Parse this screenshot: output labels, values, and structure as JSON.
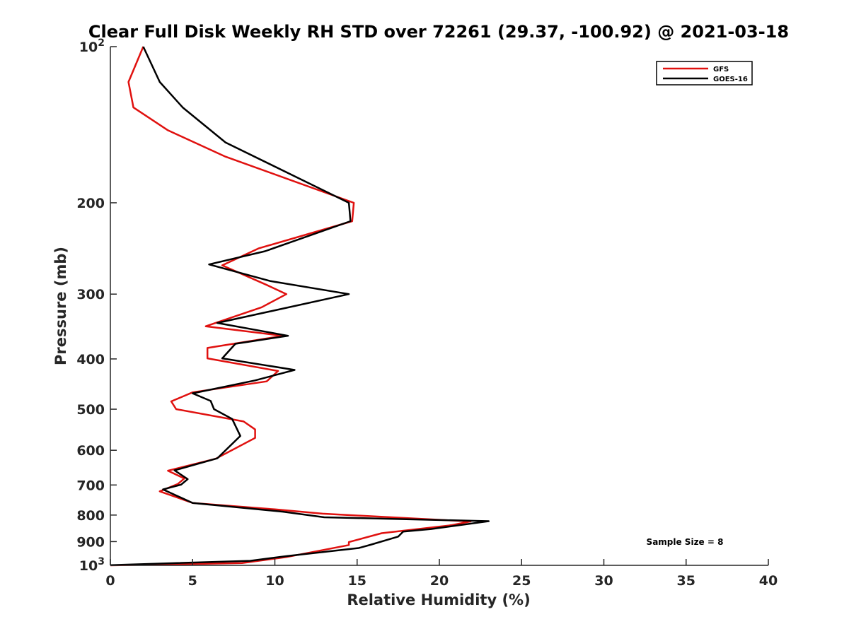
{
  "chart_data": {
    "type": "line",
    "title": "Clear Full Disk Weekly RH STD over 72261 (29.37, -100.92) @ 2021-03-18",
    "xlabel": "Relative Humidity (%)",
    "ylabel": "Pressure (mb)",
    "xlim": [
      0,
      40
    ],
    "ylim": [
      100,
      1000
    ],
    "yscale": "log",
    "y_reversed": true,
    "x_ticks": [
      0,
      5,
      10,
      15,
      20,
      25,
      30,
      35,
      40
    ],
    "y_ticks": [
      {
        "value": 100,
        "label": "10",
        "sup": "2"
      },
      {
        "value": 200,
        "label": "200",
        "sup": ""
      },
      {
        "value": 300,
        "label": "300",
        "sup": ""
      },
      {
        "value": 400,
        "label": "400",
        "sup": ""
      },
      {
        "value": 500,
        "label": "500",
        "sup": ""
      },
      {
        "value": 600,
        "label": "600",
        "sup": ""
      },
      {
        "value": 700,
        "label": "700",
        "sup": ""
      },
      {
        "value": 800,
        "label": "800",
        "sup": ""
      },
      {
        "value": 900,
        "label": "900",
        "sup": ""
      },
      {
        "value": 1000,
        "label": "10",
        "sup": "3"
      }
    ],
    "grid": false,
    "legend_position": "top-right",
    "annotation": "Sample Size = 8",
    "series": [
      {
        "name": "GFS",
        "color": "#e0110f",
        "points": [
          [
            2.0,
            100
          ],
          [
            1.1,
            117
          ],
          [
            1.4,
            131
          ],
          [
            3.5,
            145
          ],
          [
            7.0,
            163
          ],
          [
            14.8,
            200
          ],
          [
            14.7,
            217
          ],
          [
            9.0,
            245
          ],
          [
            6.8,
            264
          ],
          [
            9.5,
            288
          ],
          [
            10.7,
            300
          ],
          [
            9.2,
            318
          ],
          [
            5.8,
            346
          ],
          [
            10.5,
            361
          ],
          [
            5.9,
            381
          ],
          [
            5.9,
            399
          ],
          [
            10.2,
            422
          ],
          [
            9.5,
            442
          ],
          [
            5.0,
            464
          ],
          [
            3.7,
            483
          ],
          [
            4.0,
            500
          ],
          [
            8.1,
            528
          ],
          [
            8.8,
            547
          ],
          [
            8.8,
            568
          ],
          [
            6.4,
            623
          ],
          [
            3.5,
            657
          ],
          [
            4.5,
            680
          ],
          [
            4.1,
            697
          ],
          [
            3.0,
            720
          ],
          [
            5.0,
            758
          ],
          [
            10.0,
            780
          ],
          [
            12.9,
            795
          ],
          [
            21.9,
            823
          ],
          [
            20.7,
            837
          ],
          [
            16.5,
            867
          ],
          [
            14.5,
            902
          ],
          [
            14.5,
            914
          ],
          [
            10.7,
            964
          ],
          [
            8.0,
            990
          ],
          [
            0.0,
            1000
          ]
        ]
      },
      {
        "name": "GOES-16",
        "color": "#000000",
        "points": [
          [
            2.0,
            100
          ],
          [
            3.0,
            117
          ],
          [
            4.4,
            131
          ],
          [
            7.0,
            153
          ],
          [
            14.5,
            200
          ],
          [
            14.6,
            217
          ],
          [
            9.4,
            248
          ],
          [
            6.0,
            263
          ],
          [
            9.7,
            283
          ],
          [
            14.5,
            300
          ],
          [
            6.5,
            341
          ],
          [
            10.8,
            361
          ],
          [
            7.6,
            374
          ],
          [
            6.8,
            399
          ],
          [
            11.2,
            420
          ],
          [
            8.8,
            440
          ],
          [
            5.0,
            466
          ],
          [
            6.1,
            482
          ],
          [
            6.3,
            500
          ],
          [
            7.4,
            522
          ],
          [
            7.9,
            563
          ],
          [
            6.5,
            622
          ],
          [
            3.9,
            656
          ],
          [
            4.7,
            682
          ],
          [
            4.3,
            699
          ],
          [
            3.2,
            714
          ],
          [
            5.0,
            758
          ],
          [
            10.5,
            788
          ],
          [
            13.0,
            808
          ],
          [
            23.0,
            822
          ],
          [
            19.5,
            851
          ],
          [
            17.8,
            861
          ],
          [
            17.5,
            880
          ],
          [
            15.8,
            913
          ],
          [
            15.1,
            926
          ],
          [
            10.7,
            960
          ],
          [
            8.5,
            980
          ],
          [
            0.0,
            999
          ]
        ]
      }
    ]
  }
}
